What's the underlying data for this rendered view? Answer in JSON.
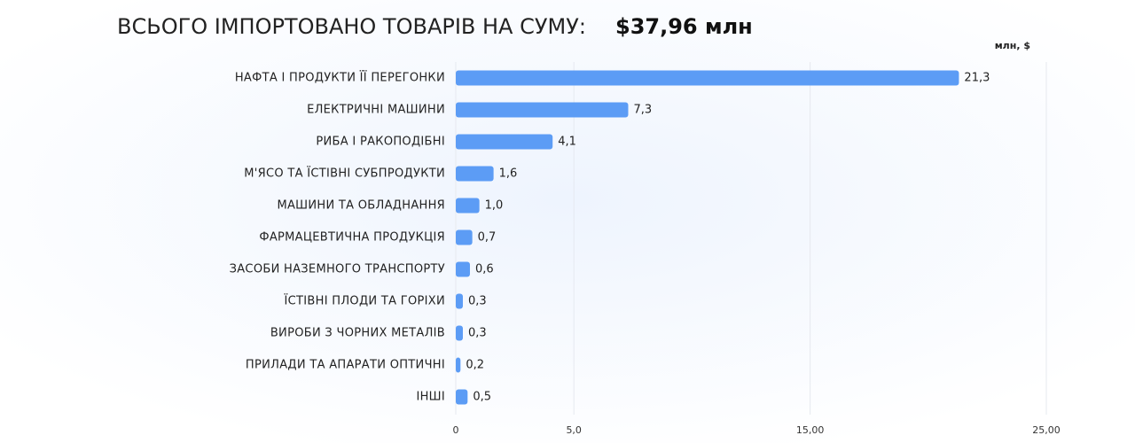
{
  "chart_data": {
    "type": "bar",
    "orientation": "horizontal",
    "title": "ВСЬОГО ІМПОРТОВАНО ТОВАРІВ НА СУМУ:",
    "subtitle": "$37,96 млн",
    "unit_label": "млн, $",
    "categories": [
      "НАФТА І ПРОДУКТИ ЇЇ ПЕРЕГОНКИ",
      "ЕЛЕКТРИЧНІ МАШИНИ",
      "РИБА І РАКОПОДІБНІ",
      "М'ЯСО ТА ЇСТІВНІ СУБПРОДУКТИ",
      "МАШИНИ ТА ОБЛАДНАННЯ",
      "ФАРМАЦЕВТИЧНА ПРОДУКЦІЯ",
      "ЗАСОБИ НАЗЕМНОГО ТРАНСПОРТУ",
      "ЇСТІВНІ ПЛОДИ ТА ГОРІХИ",
      "ВИРОБИ З ЧОРНИХ МЕТАЛІВ",
      "ПРИЛАДИ ТА АПАРАТИ ОПТИЧНІ",
      "ІНШІ"
    ],
    "values": [
      21.3,
      7.3,
      4.1,
      1.6,
      1.0,
      0.7,
      0.6,
      0.3,
      0.3,
      0.2,
      0.5
    ],
    "value_labels": [
      "21,3",
      "7,3",
      "4,1",
      "1,6",
      "1,0",
      "0,7",
      "0,6",
      "0,3",
      "0,3",
      "0,2",
      "0,5"
    ],
    "color": "#5c9cf5",
    "xlim": [
      0,
      25
    ],
    "xticks": [
      0,
      {
        "value": 5,
        "label": "5,0"
      },
      {
        "value": 15,
        "label": "15,00"
      },
      {
        "value": 25,
        "label": "25,00"
      }
    ],
    "grid": true
  }
}
